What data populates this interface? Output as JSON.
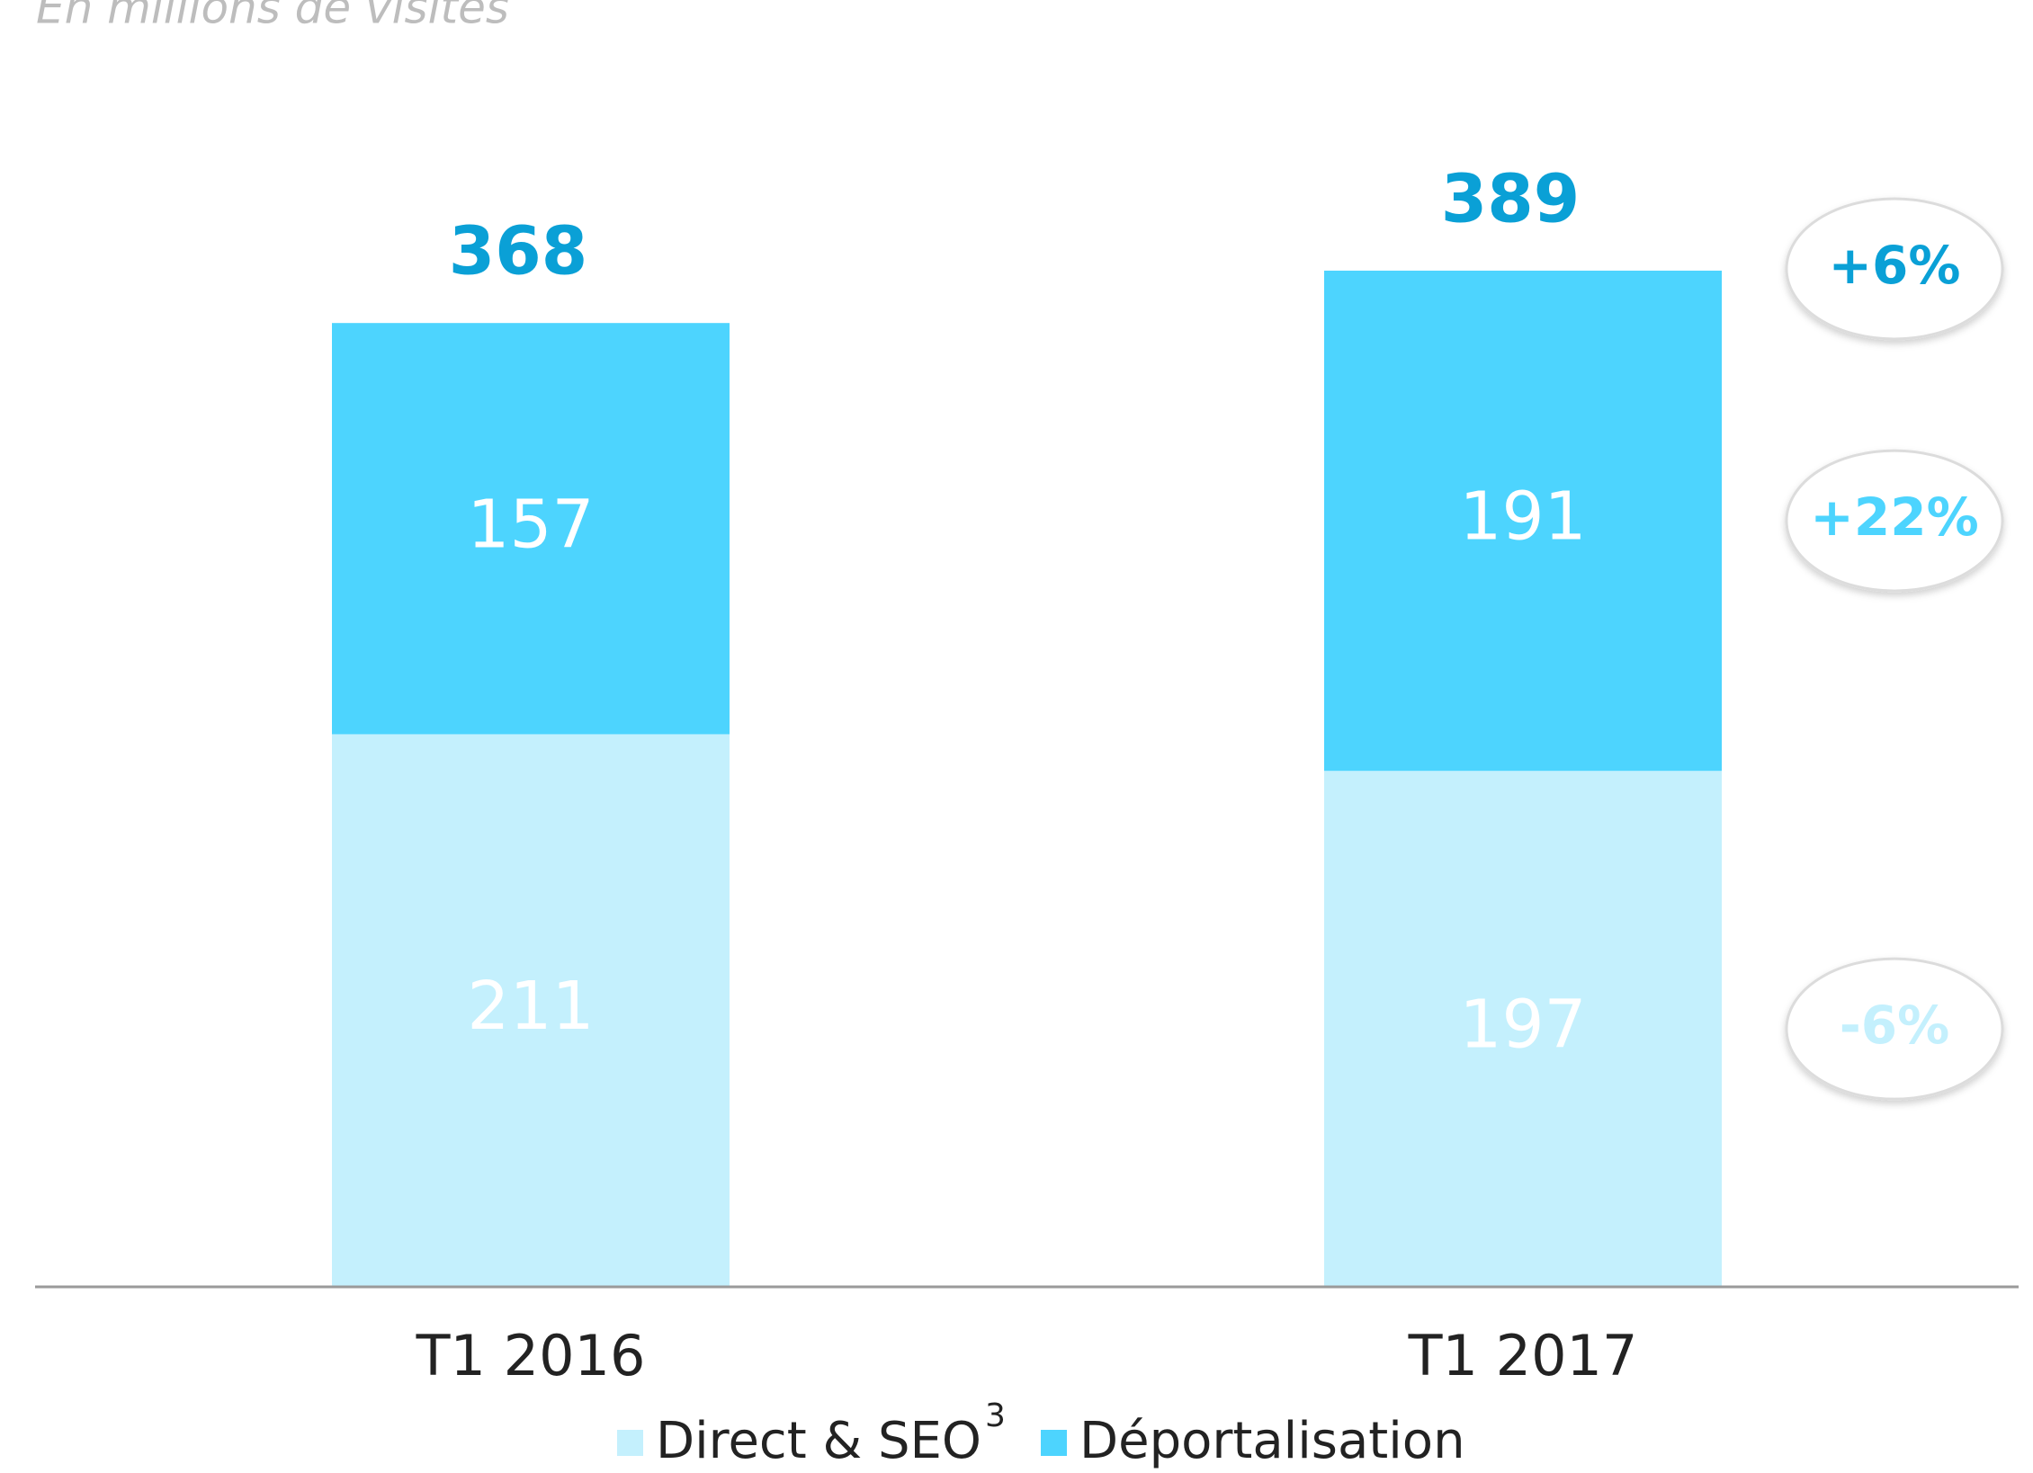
{
  "chart_data": {
    "type": "stacked_bar",
    "subtitle": "En millions de visites",
    "categories": [
      "T1 2016",
      "T1 2017"
    ],
    "series": [
      {
        "name": "Direct & SEO",
        "footnote": "3",
        "color": "#c4f0fd",
        "values": [
          211,
          197
        ],
        "growth": "-6%"
      },
      {
        "name": "Déportalisation",
        "color": "#4dd4fe",
        "values": [
          157,
          191
        ],
        "growth": "+22%"
      }
    ],
    "totals": [
      368,
      389
    ],
    "total_growth": "+6%",
    "total_color": "#0aa0d6",
    "ylim": [
      0,
      400
    ]
  }
}
